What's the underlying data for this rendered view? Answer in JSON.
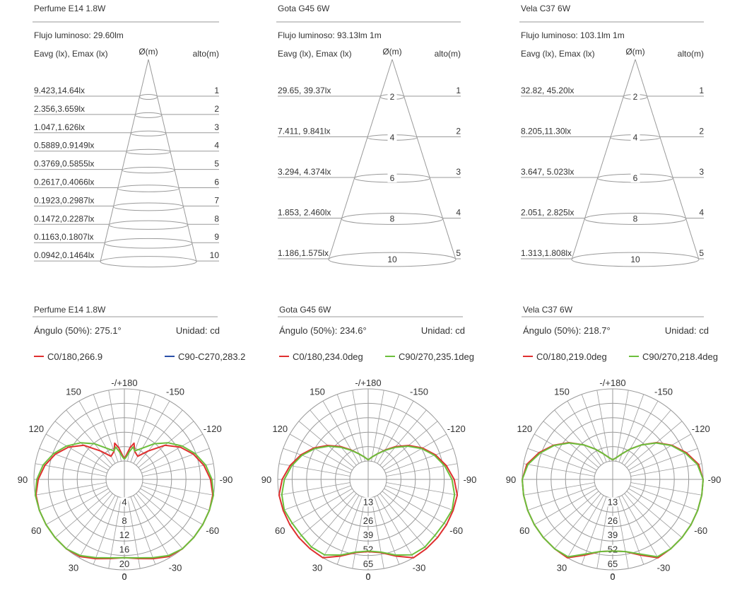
{
  "cones": [
    {
      "title": "Perfume E14 1.8W",
      "flux": "Flujo luminoso: 29.60lm",
      "col_e": "Eavg (lx), Emax (lx)",
      "col_d": "Ø(m)",
      "col_h": "alto(m)",
      "rows": [
        {
          "e": "9.423,14.64lx",
          "h": "1"
        },
        {
          "e": "2.356,3.659lx",
          "h": "2"
        },
        {
          "e": "1.047,1.626lx",
          "h": "3"
        },
        {
          "e": "0.5889,0.9149lx",
          "h": "4"
        },
        {
          "e": "0.3769,0.5855lx",
          "h": "5"
        },
        {
          "e": "0.2617,0.4066lx",
          "h": "6"
        },
        {
          "e": "0.1923,0.2987lx",
          "h": "7"
        },
        {
          "e": "0.1472,0.2287lx",
          "h": "8"
        },
        {
          "e": "0.1163,0.1807lx",
          "h": "9"
        },
        {
          "e": "0.0942,0.1464lx",
          "h": "10"
        }
      ]
    },
    {
      "title": "Gota G45 6W",
      "flux": "Flujo luminoso: 93.13lm 1m",
      "col_e": "Eavg (lx), Emax (lx)",
      "col_d": "Ø(m)",
      "col_h": "alto(m)",
      "rows": [
        {
          "e": "29.65, 39.37lx",
          "d": "2",
          "h": "1"
        },
        {
          "e": "7.411, 9.841lx",
          "d": "4",
          "h": "2"
        },
        {
          "e": "3.294, 4.374lx",
          "d": "6",
          "h": "3"
        },
        {
          "e": "1.853, 2.460lx",
          "d": "8",
          "h": "4"
        },
        {
          "e": "1.186,1.575lx",
          "d": "10",
          "h": "5"
        }
      ]
    },
    {
      "title": "Vela C37 6W",
      "flux": "Flujo luminoso: 103.1lm 1m",
      "col_e": "Eavg (lx), Emax (lx)",
      "col_d": "Ø(m)",
      "col_h": "alto(m)",
      "rows": [
        {
          "e": "32.82, 45.20lx",
          "d": "2",
          "h": "1"
        },
        {
          "e": "8.205,11.30lx",
          "d": "4",
          "h": "2"
        },
        {
          "e": "3.647, 5.023lx",
          "d": "6",
          "h": "3"
        },
        {
          "e": "2.051, 2.825lx",
          "d": "8",
          "h": "4"
        },
        {
          "e": "1.313,1.808lx",
          "d": "10",
          "h": "5"
        }
      ]
    }
  ],
  "polars": [
    {
      "title": "Perfume E14 1.8W",
      "angle": "Ángulo (50%): 275.1°",
      "unit": "Unidad: cd",
      "series": [
        {
          "name": "C0/180,266.9",
          "color": "#e03030"
        },
        {
          "name": "C90-C270,283.2",
          "color": "#2a4fa8"
        }
      ]
    },
    {
      "title": "Gota G45 6W",
      "angle": "Ángulo (50%): 234.6°",
      "unit": "Unidad: cd",
      "series": [
        {
          "name": "C0/180,234.0deg",
          "color": "#e03030"
        },
        {
          "name": "C90/270,235.1deg",
          "color": "#6cbf3c"
        }
      ]
    },
    {
      "title": "Vela C37 6W",
      "angle": "Ángulo (50%): 218.7°",
      "unit": "Unidad: cd",
      "series": [
        {
          "name": "C0/180,219.0deg",
          "color": "#e03030"
        },
        {
          "name": "C90/270,218.4deg",
          "color": "#6cbf3c"
        }
      ]
    }
  ],
  "chart_data": [
    {
      "type": "polar",
      "title": "Perfume E14 1.8W",
      "unit": "cd",
      "angle_ticks": [
        "-/+180",
        "150",
        "120",
        "90",
        "60",
        "30",
        "0",
        "-30",
        "-60",
        "-90",
        "-120",
        "-150"
      ],
      "radial_ticks": [
        "4",
        "8",
        "12",
        "16",
        "20"
      ],
      "rmax": 20,
      "series": [
        {
          "name": "C0/180,266.9",
          "angles": [
            0,
            10,
            20,
            30,
            40,
            50,
            60,
            70,
            80,
            90,
            100,
            110,
            120,
            130,
            140,
            150,
            160,
            165,
            170,
            175,
            180
          ],
          "values": [
            16.6,
            17.2,
            18.3,
            19.6,
            20.7,
            21.1,
            21.0,
            20.6,
            19.8,
            18.8,
            17.3,
            15.3,
            12.8,
            9.6,
            5.2,
            2.3,
            3.2,
            5.3,
            3.8,
            1.8,
            0.6
          ]
        },
        {
          "name": "C90-C270,283.2",
          "angles": [
            0,
            10,
            20,
            30,
            40,
            50,
            60,
            70,
            80,
            90,
            100,
            110,
            120,
            130,
            140,
            150,
            160,
            165,
            170,
            175,
            180
          ],
          "values": [
            16.6,
            17.0,
            18.0,
            19.3,
            20.4,
            21.2,
            21.3,
            20.9,
            20.2,
            19.2,
            17.8,
            15.8,
            13.4,
            10.7,
            7.8,
            4.9,
            3.3,
            4.2,
            2.6,
            1.2,
            0.5
          ]
        }
      ]
    },
    {
      "type": "polar",
      "title": "Gota G45 6W",
      "unit": "cd",
      "angle_ticks": [
        "-/+180",
        "150",
        "120",
        "90",
        "60",
        "30",
        "0",
        "-30",
        "-60",
        "-90",
        "-120",
        "-150"
      ],
      "radial_ticks": [
        "13",
        "26",
        "39",
        "52",
        "65"
      ],
      "rmax": 65,
      "series": [
        {
          "name": "C0/180,234.0deg",
          "angles": [
            0,
            10,
            20,
            30,
            40,
            50,
            60,
            70,
            80,
            90,
            100,
            110,
            120,
            130,
            140,
            150,
            160,
            170,
            180
          ],
          "values": [
            48.5,
            50.5,
            57,
            66,
            71,
            72,
            72,
            70.5,
            67,
            61,
            55,
            48,
            40,
            31,
            22,
            14,
            8,
            4,
            1
          ]
        },
        {
          "name": "C90/270,235.1deg",
          "angles": [
            0,
            10,
            20,
            30,
            40,
            50,
            60,
            70,
            80,
            90,
            100,
            110,
            120,
            130,
            140,
            150,
            160,
            170,
            180
          ],
          "values": [
            48,
            50,
            56,
            62,
            63,
            62,
            62.5,
            64,
            62.5,
            59,
            53.5,
            47,
            39,
            30,
            21,
            13.5,
            8,
            4,
            1
          ]
        }
      ]
    },
    {
      "type": "polar",
      "title": "Vela C37 6W",
      "unit": "cd",
      "angle_ticks": [
        "-/+180",
        "150",
        "120",
        "90",
        "60",
        "30",
        "0",
        "-30",
        "-60",
        "-90",
        "-120",
        "-150"
      ],
      "radial_ticks": [
        "13",
        "26",
        "39",
        "52",
        "65"
      ],
      "rmax": 65,
      "series": [
        {
          "name": "C0/180,219.0deg",
          "angles": [
            0,
            10,
            20,
            30,
            40,
            50,
            60,
            70,
            80,
            90,
            100,
            110,
            120,
            130,
            140,
            150,
            160,
            170,
            180
          ],
          "values": [
            48,
            49.5,
            56,
            66,
            73,
            76,
            76.5,
            75.5,
            73,
            68,
            62,
            54,
            45,
            35,
            24,
            15,
            8,
            3.5,
            1
          ]
        },
        {
          "name": "C90/270,218.4deg",
          "angles": [
            0,
            10,
            20,
            30,
            40,
            50,
            60,
            70,
            80,
            90,
            100,
            110,
            120,
            130,
            140,
            150,
            160,
            170,
            180
          ],
          "values": [
            48,
            49.5,
            55,
            64,
            71,
            74,
            75,
            74.5,
            72,
            67,
            61,
            53,
            44.5,
            34.5,
            24,
            15,
            8,
            3.5,
            1
          ]
        }
      ]
    }
  ]
}
